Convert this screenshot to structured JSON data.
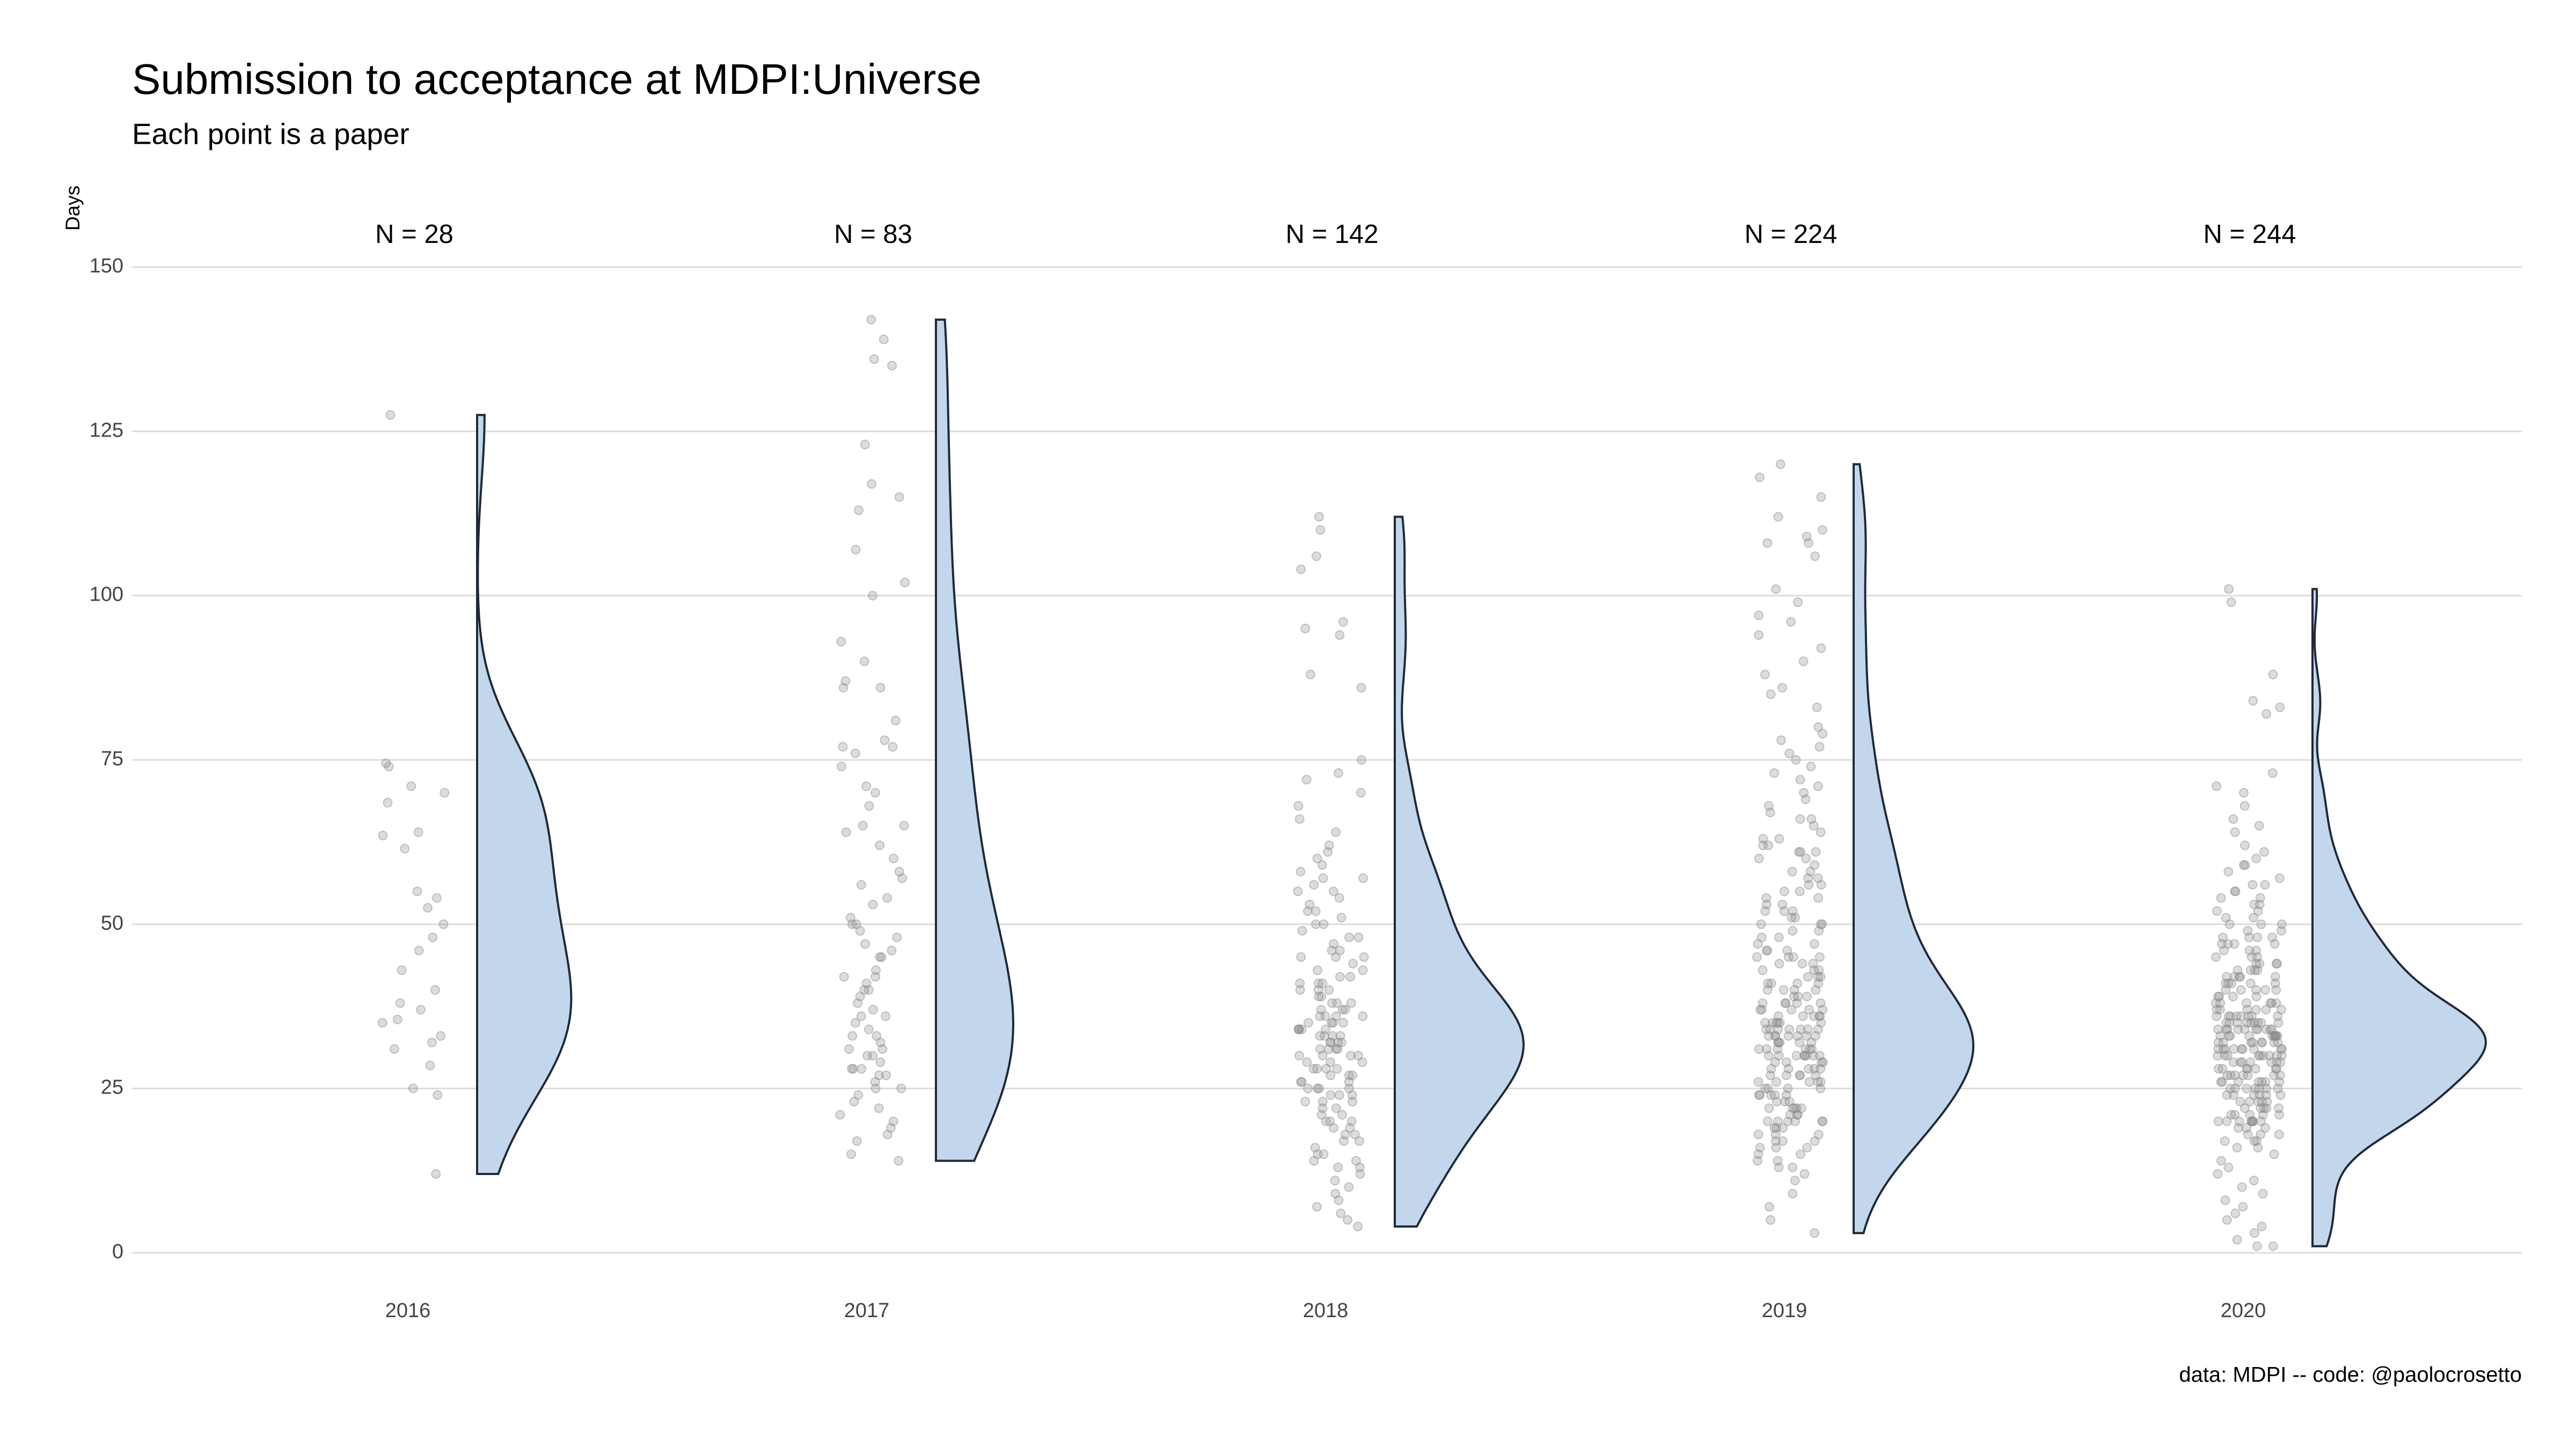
{
  "chart_data": {
    "type": "raincloud",
    "title": "Submission to acceptance at MDPI:Universe",
    "subtitle": "Each point is a paper",
    "y_label": "Days",
    "caption": "data: MDPI -- code: @paolocrosetto",
    "categories": [
      "2016",
      "2017",
      "2018",
      "2019",
      "2020"
    ],
    "n_labels": [
      "N = 28",
      "N = 83",
      "N = 142",
      "N = 224",
      "N = 244"
    ],
    "color": "#c3d7ec",
    "point_color": "#8a8a8a",
    "ylim": [
      0,
      150
    ],
    "yticks": [
      0,
      25,
      50,
      75,
      100,
      125,
      150
    ],
    "grid": true,
    "values": [
      [
        127.5,
        74.5,
        74,
        71,
        70,
        68.5,
        64,
        63.5,
        61.5,
        55,
        54,
        52.5,
        50,
        48,
        43,
        40,
        38,
        37,
        35.5,
        35,
        33,
        32,
        31,
        28.5,
        25,
        24,
        12,
        46
      ],
      [
        142,
        139,
        136,
        135,
        123,
        117,
        115,
        113,
        107,
        102,
        100,
        93,
        90,
        87,
        86,
        86,
        81,
        78,
        77,
        77,
        76,
        74,
        71,
        70,
        68,
        65,
        65,
        64,
        62,
        60,
        58,
        57,
        56,
        54,
        53,
        51,
        50,
        50,
        49,
        48,
        47,
        46,
        45,
        45,
        43,
        42,
        42,
        41,
        40,
        40,
        39,
        38,
        37,
        36,
        35,
        34,
        33,
        32,
        31,
        30,
        29,
        28,
        28,
        27,
        27,
        26,
        25,
        24,
        23,
        22,
        21,
        20,
        19,
        18,
        17,
        15,
        14,
        36,
        33,
        30,
        28,
        25,
        31
      ],
      [
        112,
        110,
        106,
        104,
        96,
        95,
        94,
        88,
        86,
        75,
        73,
        72,
        70,
        68,
        66,
        64,
        62,
        61,
        60,
        59,
        58,
        57,
        57,
        56,
        55,
        55,
        54,
        53,
        52,
        52,
        51,
        50,
        50,
        49,
        48,
        48,
        47,
        46,
        46,
        45,
        45,
        44,
        43,
        43,
        42,
        42,
        41,
        41,
        41,
        40,
        40,
        40,
        39,
        39,
        38,
        38,
        38,
        37,
        37,
        37,
        36,
        36,
        36,
        35,
        35,
        35,
        35,
        34,
        34,
        34,
        34,
        33,
        33,
        33,
        33,
        32,
        32,
        32,
        32,
        31,
        31,
        31,
        30,
        30,
        30,
        30,
        29,
        29,
        29,
        28,
        28,
        28,
        27,
        27,
        27,
        26,
        26,
        26,
        25,
        25,
        25,
        24,
        24,
        24,
        23,
        23,
        23,
        22,
        22,
        21,
        21,
        20,
        20,
        20,
        19,
        19,
        18,
        18,
        17,
        17,
        16,
        15,
        15,
        14,
        14,
        13,
        13,
        12,
        11,
        10,
        9,
        8,
        7,
        6,
        5,
        4,
        36,
        34,
        31,
        28,
        25,
        45
      ],
      [
        120,
        118,
        115,
        112,
        110,
        109,
        108,
        108,
        106,
        101,
        99,
        97,
        96,
        94,
        92,
        90,
        88,
        86,
        85,
        83,
        80,
        79,
        78,
        77,
        76,
        75,
        74,
        73,
        72,
        71,
        70,
        69,
        68,
        67,
        66,
        66,
        65,
        64,
        63,
        63,
        62,
        62,
        61,
        61,
        61,
        60,
        60,
        59,
        58,
        58,
        57,
        57,
        56,
        56,
        55,
        55,
        54,
        54,
        53,
        53,
        52,
        52,
        51,
        51,
        50,
        50,
        50,
        49,
        49,
        48,
        48,
        47,
        47,
        46,
        46,
        46,
        45,
        45,
        45,
        44,
        44,
        44,
        43,
        43,
        43,
        42,
        42,
        42,
        41,
        41,
        41,
        40,
        40,
        40,
        40,
        39,
        39,
        39,
        38,
        38,
        38,
        38,
        37,
        37,
        37,
        37,
        36,
        36,
        36,
        36,
        36,
        35,
        35,
        35,
        35,
        35,
        34,
        34,
        34,
        34,
        34,
        34,
        33,
        33,
        33,
        33,
        33,
        33,
        32,
        32,
        32,
        32,
        32,
        31,
        31,
        31,
        31,
        31,
        30,
        30,
        30,
        30,
        30,
        30,
        30,
        29,
        29,
        29,
        29,
        28,
        28,
        28,
        28,
        27,
        27,
        27,
        27,
        26,
        26,
        26,
        26,
        25,
        25,
        25,
        25,
        24,
        24,
        24,
        24,
        23,
        23,
        23,
        22,
        22,
        22,
        22,
        21,
        21,
        21,
        20,
        20,
        20,
        20,
        20,
        20,
        19,
        19,
        19,
        18,
        18,
        18,
        17,
        17,
        17,
        16,
        16,
        16,
        15,
        15,
        14,
        14,
        13,
        13,
        12,
        11,
        9,
        7,
        5,
        3,
        35,
        33,
        31,
        28,
        26,
        37,
        34,
        30,
        24,
        45,
        52,
        41,
        38,
        27,
        22
      ],
      [
        101,
        99,
        88,
        84,
        83,
        82,
        73,
        71,
        70,
        68,
        66,
        65,
        64,
        62,
        61,
        60,
        59,
        59,
        58,
        57,
        56,
        56,
        55,
        55,
        54,
        54,
        53,
        53,
        52,
        52,
        51,
        51,
        50,
        50,
        50,
        49,
        49,
        48,
        48,
        48,
        47,
        47,
        47,
        46,
        46,
        46,
        45,
        45,
        45,
        44,
        44,
        44,
        43,
        43,
        43,
        42,
        42,
        42,
        42,
        41,
        41,
        41,
        41,
        40,
        40,
        40,
        40,
        39,
        39,
        39,
        39,
        38,
        38,
        38,
        38,
        38,
        37,
        37,
        37,
        37,
        37,
        36,
        36,
        36,
        36,
        36,
        36,
        35,
        35,
        35,
        35,
        35,
        35,
        35,
        34,
        34,
        34,
        34,
        34,
        34,
        34,
        33,
        33,
        33,
        33,
        33,
        33,
        33,
        32,
        32,
        32,
        32,
        32,
        32,
        31,
        31,
        31,
        31,
        31,
        31,
        30,
        30,
        30,
        30,
        30,
        30,
        30,
        29,
        29,
        29,
        29,
        29,
        28,
        28,
        28,
        28,
        28,
        27,
        27,
        27,
        27,
        27,
        26,
        26,
        26,
        26,
        26,
        25,
        25,
        25,
        25,
        25,
        24,
        24,
        24,
        24,
        24,
        23,
        23,
        23,
        23,
        22,
        22,
        22,
        22,
        21,
        21,
        21,
        21,
        20,
        20,
        20,
        20,
        20,
        20,
        20,
        20,
        19,
        19,
        18,
        18,
        17,
        17,
        16,
        16,
        15,
        14,
        13,
        12,
        11,
        10,
        9,
        8,
        7,
        6,
        5,
        4,
        3,
        2,
        1,
        1,
        36,
        35,
        34,
        33,
        32,
        31,
        30,
        29,
        28,
        27,
        26,
        25,
        24,
        23,
        38,
        37,
        36,
        35,
        34,
        33,
        32,
        31,
        30,
        29,
        28,
        27,
        26,
        25,
        22,
        21,
        44,
        43,
        42,
        41,
        40,
        47,
        48,
        19,
        18,
        17,
        33,
        34,
        31
      ]
    ]
  }
}
